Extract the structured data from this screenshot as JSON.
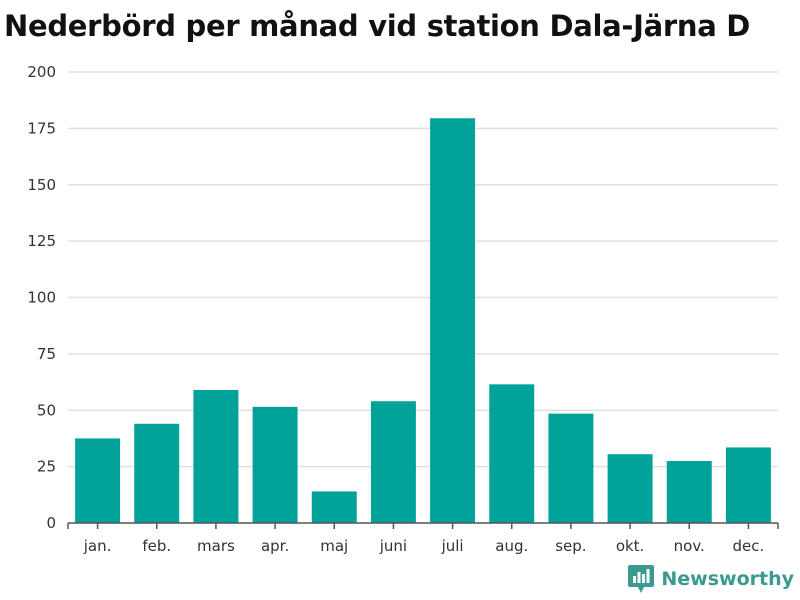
{
  "chart_data": {
    "type": "bar",
    "title": "Nederbörd per månad vid station Dala-Järna D",
    "xlabel": "",
    "ylabel": "",
    "categories": [
      "jan.",
      "feb.",
      "mars",
      "apr.",
      "maj",
      "juni",
      "juli",
      "aug.",
      "sep.",
      "okt.",
      "nov.",
      "dec."
    ],
    "values": [
      37.5,
      44,
      59,
      51.5,
      14,
      54,
      179.5,
      61.5,
      48.5,
      30.5,
      27.5,
      33.5
    ],
    "ylim": [
      0,
      200
    ],
    "yticks": [
      "0",
      "25",
      "50",
      "75",
      "100",
      "125",
      "150",
      "175",
      "200"
    ],
    "grid": true,
    "bar_color": "#00a29a"
  },
  "brand": {
    "name": "Newsworthy",
    "logo_icon": "newsworthy-logo-icon",
    "color": "#3a9a8f"
  }
}
